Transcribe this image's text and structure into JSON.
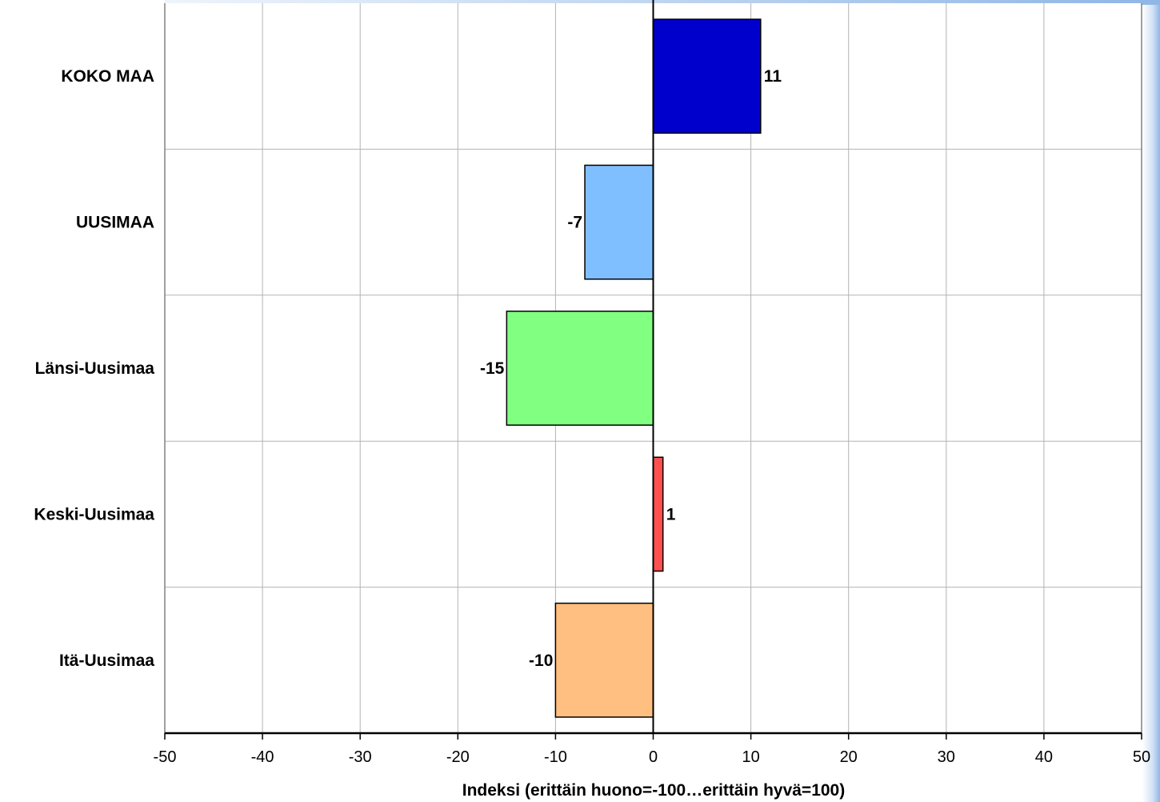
{
  "chart_data": {
    "type": "bar",
    "orientation": "horizontal",
    "categories": [
      "KOKO MAA",
      "UUSIMAA",
      "Länsi-Uusimaa",
      "Keski-Uusimaa",
      "Itä-Uusimaa"
    ],
    "values": [
      11,
      -7,
      -15,
      1,
      -10
    ],
    "data_labels": [
      "11",
      "-7",
      "-15",
      "1",
      "-10"
    ],
    "colors": [
      "#0000cc",
      "#80bfff",
      "#80ff80",
      "#ff5050",
      "#ffbf80"
    ],
    "xlabel": "Indeksi (erittäin huono=-100…erittäin hyvä=100)",
    "ylabel": "",
    "title": "",
    "xlim": [
      -50,
      50
    ],
    "xticks": [
      -50,
      -40,
      -30,
      -20,
      -10,
      0,
      10,
      20,
      30,
      40,
      50
    ],
    "tick_labels": [
      "-50",
      "-40",
      "-30",
      "-20",
      "-10",
      "0",
      "10",
      "20",
      "30",
      "40",
      "50"
    ],
    "grid": true,
    "legend": "none"
  }
}
